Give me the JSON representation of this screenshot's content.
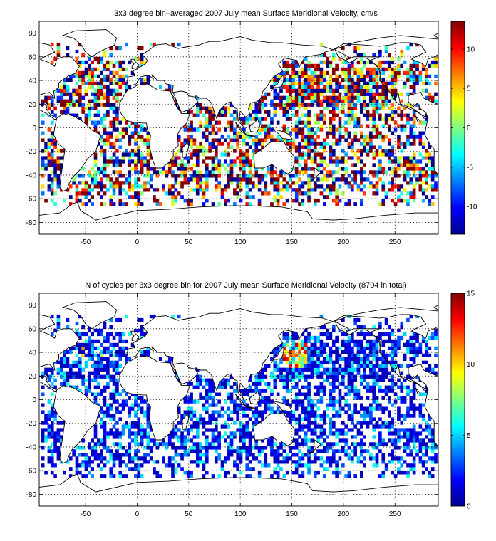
{
  "chart_data": [
    {
      "type": "heatmap",
      "title": "3x3 degree bin–averaged 2007 July mean Surface Meridional Velocity, cm/s",
      "xlabel": "",
      "ylabel": "",
      "xlim": [
        -95,
        292
      ],
      "ylim": [
        -90,
        90
      ],
      "xticks": [
        -50,
        0,
        50,
        100,
        150,
        200,
        250
      ],
      "yticks": [
        -80,
        -60,
        -40,
        -20,
        0,
        20,
        40,
        60,
        80
      ],
      "bin_size_deg": 3,
      "grid": true,
      "colorbar": {
        "range": [
          -13.5,
          13.5
        ],
        "ticks": [
          -10,
          -5,
          0,
          5,
          10
        ],
        "colormap": "jet",
        "placement": "right"
      },
      "data_description": "Sparse 3x3 degree bins over oceans, roughly 66S to 70N; values range about -13 to +13 cm/s with many saturated red and dark blue bins"
    },
    {
      "type": "heatmap",
      "title": "N of cycles per 3x3 degree bin for 2007 July mean Surface Meridional Velocity (8704 in total)",
      "xlabel": "",
      "ylabel": "",
      "xlim": [
        -95,
        292
      ],
      "ylim": [
        -90,
        90
      ],
      "xticks": [
        -50,
        0,
        50,
        100,
        150,
        200,
        250
      ],
      "yticks": [
        -80,
        -60,
        -40,
        -20,
        0,
        20,
        40,
        60,
        80
      ],
      "bin_size_deg": 3,
      "grid": true,
      "total_cycles": 8704,
      "colorbar": {
        "range": [
          0,
          15
        ],
        "ticks": [
          0,
          5,
          10,
          15
        ],
        "colormap": "jet",
        "placement": "right"
      },
      "data_description": "Counts per bin mostly 1-4 (dark blue), higher counts (5-15, cyan to red) in the western North Pacific near 30-45N, 140-160E and scattered North Atlantic bins"
    }
  ]
}
